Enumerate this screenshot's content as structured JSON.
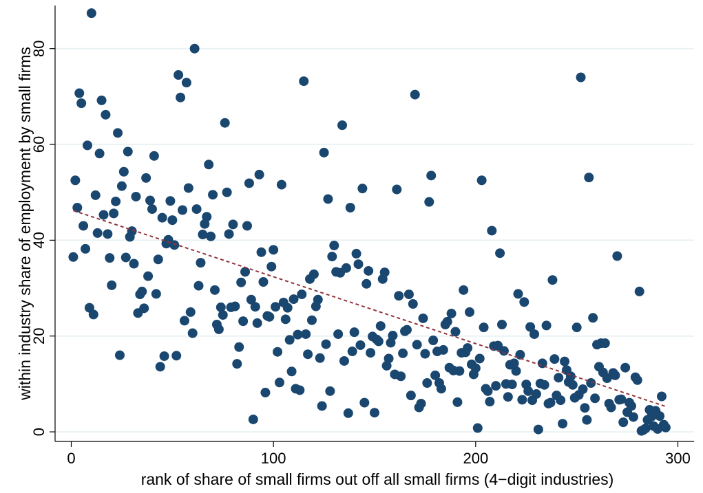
{
  "chart_data": {
    "type": "scatter",
    "xlabel": "rank of share of small firms out off all small firms (4−digit industries)",
    "ylabel": "within industry share of employment by small firms",
    "xlim": [
      -8,
      308
    ],
    "ylim": [
      -2,
      89
    ],
    "x_ticks": [
      0,
      100,
      200,
      300
    ],
    "y_ticks": [
      0,
      20,
      40,
      60,
      80
    ],
    "grid": "horizontal",
    "legend": "none",
    "colors": {
      "point": "#1a476f",
      "fit_line": "#90353b",
      "grid": "#eaf2f3"
    },
    "fit_line": {
      "style": "dashed",
      "x": [
        1,
        294
      ],
      "y": [
        46.2,
        5.3
      ]
    },
    "points": [
      [
        1,
        36.5
      ],
      [
        2,
        52.5
      ],
      [
        3,
        46.8
      ],
      [
        4,
        70.7
      ],
      [
        5,
        68.6
      ],
      [
        6,
        43
      ],
      [
        7,
        38.2
      ],
      [
        8,
        59.8
      ],
      [
        9,
        25.9
      ],
      [
        10,
        87.4
      ],
      [
        11,
        24.5
      ],
      [
        12,
        49.4
      ],
      [
        13,
        41.5
      ],
      [
        14,
        58.1
      ],
      [
        15,
        69.2
      ],
      [
        16,
        45.3
      ],
      [
        17,
        66.2
      ],
      [
        18,
        41.3
      ],
      [
        19,
        36.3
      ],
      [
        20,
        30.6
      ],
      [
        21,
        45.6
      ],
      [
        22,
        48.1
      ],
      [
        23,
        62.4
      ],
      [
        24,
        16
      ],
      [
        25,
        51.3
      ],
      [
        26,
        54.3
      ],
      [
        27,
        36.4
      ],
      [
        28,
        58.5
      ],
      [
        29,
        40.7
      ],
      [
        30,
        41.9
      ],
      [
        31,
        35.1
      ],
      [
        32,
        49.1
      ],
      [
        33,
        24.8
      ],
      [
        34,
        28.7
      ],
      [
        35,
        29.3
      ],
      [
        36,
        25.8
      ],
      [
        37,
        53
      ],
      [
        38,
        32.5
      ],
      [
        39,
        48.3
      ],
      [
        40,
        46.5
      ],
      [
        41,
        57.6
      ],
      [
        42,
        28.8
      ],
      [
        43,
        36
      ],
      [
        44,
        13.6
      ],
      [
        45,
        44.7
      ],
      [
        46,
        15.8
      ],
      [
        47,
        39.3
      ],
      [
        48,
        40.1
      ],
      [
        49,
        48.2
      ],
      [
        50,
        44.2
      ],
      [
        51,
        39
      ],
      [
        52,
        15.9
      ],
      [
        53,
        74.5
      ],
      [
        54,
        69.8
      ],
      [
        55,
        46.3
      ],
      [
        56,
        23.2
      ],
      [
        57,
        72.9
      ],
      [
        58,
        50.9
      ],
      [
        59,
        25
      ],
      [
        60,
        20.6
      ],
      [
        61,
        80
      ],
      [
        62,
        46.5
      ],
      [
        63,
        30.5
      ],
      [
        64,
        35.3
      ],
      [
        65,
        41.2
      ],
      [
        66,
        43.4
      ],
      [
        67,
        44.9
      ],
      [
        68,
        55.8
      ],
      [
        69,
        40.8
      ],
      [
        70,
        49.5
      ],
      [
        71,
        29.6
      ],
      [
        72,
        22.4
      ],
      [
        73,
        21.4
      ],
      [
        74,
        26
      ],
      [
        75,
        24.4
      ],
      [
        76,
        64.5
      ],
      [
        77,
        50
      ],
      [
        78,
        41.3
      ],
      [
        79,
        26
      ],
      [
        80,
        43.3
      ],
      [
        81,
        26.2
      ],
      [
        82,
        14.2
      ],
      [
        83,
        17.7
      ],
      [
        84,
        31.2
      ],
      [
        85,
        23.1
      ],
      [
        86,
        33.4
      ],
      [
        87,
        43
      ],
      [
        88,
        51.9
      ],
      [
        89,
        27.6
      ],
      [
        90,
        2.6
      ],
      [
        91,
        26.1
      ],
      [
        92,
        22.7
      ],
      [
        93,
        53.7
      ],
      [
        94,
        37.5
      ],
      [
        95,
        31.3
      ],
      [
        96,
        8.2
      ],
      [
        97,
        24.2
      ],
      [
        98,
        24
      ],
      [
        99,
        34.5
      ],
      [
        100,
        38
      ],
      [
        101,
        26.1
      ],
      [
        102,
        16.7
      ],
      [
        103,
        10.3
      ],
      [
        104,
        51.6
      ],
      [
        105,
        27
      ],
      [
        106,
        23.5
      ],
      [
        107,
        25.9
      ],
      [
        108,
        19.2
      ],
      [
        109,
        12.6
      ],
      [
        110,
        27.7
      ],
      [
        111,
        9
      ],
      [
        112,
        20.3
      ],
      [
        113,
        8.7
      ],
      [
        114,
        28.7
      ],
      [
        115,
        73.2
      ],
      [
        116,
        20.4
      ],
      [
        117,
        16.2
      ],
      [
        118,
        31.9
      ],
      [
        119,
        23.3
      ],
      [
        120,
        32.9
      ],
      [
        121,
        26.2
      ],
      [
        122,
        27.6
      ],
      [
        123,
        15.4
      ],
      [
        124,
        5.4
      ],
      [
        125,
        58.3
      ],
      [
        126,
        18.3
      ],
      [
        127,
        48.6
      ],
      [
        128,
        8.5
      ],
      [
        129,
        36.6
      ],
      [
        130,
        38.9
      ],
      [
        131,
        33.4
      ],
      [
        132,
        20.4
      ],
      [
        133,
        33.2
      ],
      [
        134,
        64
      ],
      [
        135,
        14.8
      ],
      [
        136,
        34.2
      ],
      [
        137,
        3.9
      ],
      [
        138,
        46.8
      ],
      [
        139,
        16.8
      ],
      [
        140,
        20.8
      ],
      [
        141,
        37.2
      ],
      [
        142,
        35
      ],
      [
        143,
        18.1
      ],
      [
        144,
        50.8
      ],
      [
        145,
        6.1
      ],
      [
        146,
        30.9
      ],
      [
        147,
        33.6
      ],
      [
        148,
        16.5
      ],
      [
        149,
        19.9
      ],
      [
        150,
        4
      ],
      [
        151,
        19.3
      ],
      [
        152,
        18.9
      ],
      [
        153,
        22.1
      ],
      [
        154,
        31.9
      ],
      [
        155,
        33.3
      ],
      [
        156,
        13.8
      ],
      [
        157,
        15.3
      ],
      [
        158,
        18.6
      ],
      [
        159,
        20.1
      ],
      [
        160,
        12
      ],
      [
        161,
        50.6
      ],
      [
        162,
        28.4
      ],
      [
        163,
        11.6
      ],
      [
        164,
        16.4
      ],
      [
        165,
        21
      ],
      [
        166,
        21.3
      ],
      [
        167,
        28.7
      ],
      [
        168,
        7.6
      ],
      [
        169,
        26.7
      ],
      [
        170,
        70.4
      ],
      [
        171,
        18.2
      ],
      [
        172,
        5.1
      ],
      [
        173,
        5.9
      ],
      [
        174,
        23.7
      ],
      [
        175,
        16.3
      ],
      [
        176,
        10.2
      ],
      [
        177,
        48
      ],
      [
        178,
        53.5
      ],
      [
        179,
        19.1
      ],
      [
        180,
        11.8
      ],
      [
        181,
        16.8
      ],
      [
        182,
        10.2
      ],
      [
        183,
        9
      ],
      [
        184,
        17.1
      ],
      [
        185,
        22.4
      ],
      [
        186,
        23
      ],
      [
        187,
        13.4
      ],
      [
        188,
        24.7
      ],
      [
        189,
        12.8
      ],
      [
        190,
        20.9
      ],
      [
        191,
        6.2
      ],
      [
        192,
        12.7
      ],
      [
        193,
        16.5
      ],
      [
        194,
        29.6
      ],
      [
        195,
        16.6
      ],
      [
        196,
        17.5
      ],
      [
        197,
        25
      ],
      [
        198,
        14.1
      ],
      [
        199,
        12
      ],
      [
        200,
        13.3
      ],
      [
        201,
        0.8
      ],
      [
        202,
        15.3
      ],
      [
        203,
        52.5
      ],
      [
        204,
        21.8
      ],
      [
        205,
        9
      ],
      [
        206,
        8.5
      ],
      [
        207,
        6.3
      ],
      [
        208,
        42
      ],
      [
        209,
        17.9
      ],
      [
        210,
        9.6
      ],
      [
        211,
        18
      ],
      [
        212,
        37.3
      ],
      [
        213,
        22.4
      ],
      [
        214,
        16.9
      ],
      [
        215,
        10
      ],
      [
        216,
        7.3
      ],
      [
        217,
        14
      ],
      [
        218,
        9.9
      ],
      [
        219,
        14.3
      ],
      [
        220,
        12.7
      ],
      [
        221,
        28.8
      ],
      [
        222,
        16.1
      ],
      [
        223,
        6.7
      ],
      [
        224,
        27.1
      ],
      [
        225,
        9.9
      ],
      [
        226,
        8.5
      ],
      [
        227,
        21.9
      ],
      [
        228,
        6.6
      ],
      [
        229,
        20.4
      ],
      [
        230,
        7.9
      ],
      [
        231,
        0.5
      ],
      [
        232,
        10.1
      ],
      [
        233,
        14.3
      ],
      [
        234,
        9.8
      ],
      [
        235,
        22.2
      ],
      [
        236,
        5.9
      ],
      [
        237,
        6.1
      ],
      [
        238,
        31.7
      ],
      [
        239,
        15.2
      ],
      [
        240,
        7.6
      ],
      [
        241,
        11.3
      ],
      [
        242,
        6.6
      ],
      [
        243,
        1.7
      ],
      [
        244,
        14.7
      ],
      [
        245,
        12.9
      ],
      [
        246,
        10.4
      ],
      [
        247,
        11.6
      ],
      [
        248,
        9.8
      ],
      [
        249,
        7.1
      ],
      [
        250,
        21.8
      ],
      [
        251,
        7.7
      ],
      [
        252,
        74
      ],
      [
        253,
        8.9
      ],
      [
        254,
        5
      ],
      [
        255,
        2.5
      ],
      [
        256,
        53.1
      ],
      [
        257,
        10.2
      ],
      [
        258,
        23.8
      ],
      [
        259,
        7
      ],
      [
        260,
        18.2
      ],
      [
        261,
        13.6
      ],
      [
        262,
        18.5
      ],
      [
        263,
        12.4
      ],
      [
        264,
        18.5
      ],
      [
        265,
        11.2
      ],
      [
        266,
        5.9
      ],
      [
        267,
        5.1
      ],
      [
        268,
        12.3
      ],
      [
        269,
        11.8
      ],
      [
        270,
        36.7
      ],
      [
        271,
        6.7
      ],
      [
        272,
        6.8
      ],
      [
        273,
        2
      ],
      [
        274,
        13.4
      ],
      [
        275,
        4.1
      ],
      [
        276,
        6.1
      ],
      [
        277,
        5.4
      ],
      [
        278,
        3.1
      ],
      [
        279,
        11.4
      ],
      [
        280,
        10.8
      ],
      [
        281,
        29.3
      ],
      [
        282,
        0.2
      ],
      [
        283,
        0.4
      ],
      [
        284,
        0.7
      ],
      [
        285,
        2.5
      ],
      [
        286,
        4.6
      ],
      [
        287,
        3.2
      ],
      [
        288,
        1.2
      ],
      [
        289,
        4.4
      ],
      [
        290,
        0.6
      ],
      [
        291,
        3.3
      ],
      [
        292,
        7.4
      ],
      [
        293,
        1.5
      ],
      [
        294,
        0.9
      ]
    ]
  }
}
